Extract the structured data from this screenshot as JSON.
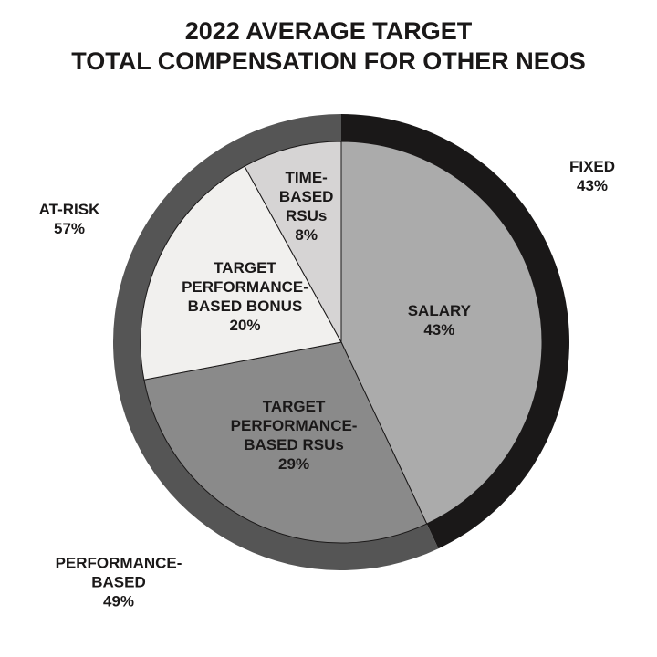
{
  "chart_data": {
    "type": "pie",
    "title": [
      "2022 AVERAGE TARGET",
      "TOTAL COMPENSATION FOR OTHER NEOS"
    ],
    "categories": [
      "SALARY",
      "TARGET PERFORMANCE-BASED RSUs",
      "TARGET PERFORMANCE-BASED BONUS",
      "TIME-BASED RSUs"
    ],
    "values": [
      43,
      29,
      20,
      8
    ],
    "value_labels": [
      "43%",
      "29%",
      "20%",
      "8%"
    ],
    "colors": [
      "#ababab",
      "#8a8a8a",
      "#f1f0ee",
      "#d6d4d4"
    ],
    "ring": {
      "categories": [
        "FIXED",
        "AT-RISK"
      ],
      "values": [
        43,
        57
      ],
      "value_labels": [
        "43%",
        "57%"
      ],
      "colors": [
        "#1a1818",
        "#555555"
      ]
    },
    "annotations": [
      {
        "text": "PERFORMANCE-BASED",
        "value": 49,
        "value_label": "49%"
      }
    ]
  }
}
